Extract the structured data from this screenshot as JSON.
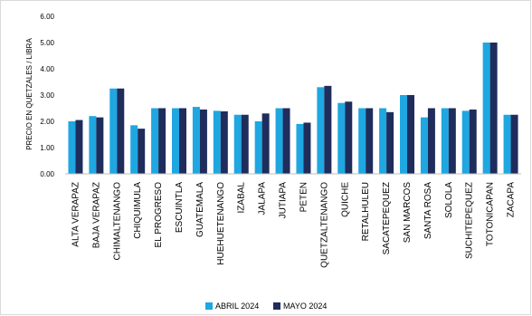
{
  "chart_data": {
    "type": "bar",
    "title": "",
    "ylabel": "PRECIO EN QUETZALES / LIBRA",
    "xlabel": "",
    "ylim": [
      0,
      6
    ],
    "yticks": [
      "0.00",
      "1.00",
      "2.00",
      "3.00",
      "4.00",
      "5.00",
      "6.00"
    ],
    "grid": false,
    "legend_position": "bottom",
    "categories": [
      "ALTA VERAPAZ",
      "BAJA VERAPAZ",
      "CHIMALTENANGO",
      "CHIQUIMULA",
      "EL PROGRESO",
      "ESCUINTLA",
      "GUATEMALA",
      "HUEHUETENANGO",
      "IZABAL",
      "JALAPA",
      "JUTIAPA",
      "PETEN",
      "QUETZALTENANGO",
      "QUICHE",
      "RETALHULEU",
      "SACATEPEQUEZ",
      "SAN MARCOS",
      "SANTA ROSA",
      "SOLOLA",
      "SUCHITEPEQUEZ",
      "TOTONICAPAN",
      "ZACAPA"
    ],
    "series": [
      {
        "name": "ABRIL 2024",
        "color": "#1ea7e1",
        "values": [
          2.0,
          2.2,
          3.25,
          1.85,
          2.5,
          2.5,
          2.55,
          2.4,
          2.25,
          2.0,
          2.5,
          1.9,
          3.3,
          2.7,
          2.5,
          2.5,
          3.0,
          2.15,
          2.5,
          2.4,
          5.0,
          2.25
        ]
      },
      {
        "name": "MAYO 2024",
        "color": "#1f2d5c",
        "values": [
          2.05,
          2.15,
          3.25,
          1.72,
          2.5,
          2.5,
          2.45,
          2.38,
          2.25,
          2.3,
          2.5,
          1.95,
          3.35,
          2.75,
          2.5,
          2.35,
          3.0,
          2.5,
          2.5,
          2.45,
          5.0,
          2.25
        ]
      }
    ]
  }
}
